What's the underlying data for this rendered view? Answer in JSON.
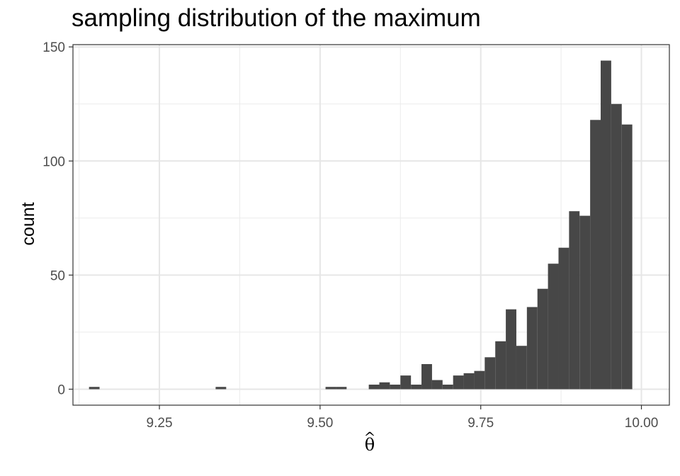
{
  "chart_data": {
    "type": "histogram",
    "title": "sampling distribution of the maximum",
    "xlabel": "θ",
    "xlabel_accent": "^",
    "ylabel": "count",
    "xlim": [
      9.1155,
      10.0435
    ],
    "ylim": [
      -7,
      151
    ],
    "bin_width": 0.0164,
    "x_ticks": [
      9.25,
      9.5,
      9.75,
      10.0
    ],
    "x_tick_labels": [
      "9.25",
      "9.50",
      "9.75",
      "10.00"
    ],
    "y_ticks": [
      0,
      50,
      100,
      150
    ],
    "y_tick_labels": [
      "0",
      "50",
      "100",
      "150"
    ],
    "grid": true,
    "bar_color": "#474747",
    "bins": [
      {
        "start": 9.1405,
        "count": 1
      },
      {
        "start": 9.3375,
        "count": 1
      },
      {
        "start": 9.5085,
        "count": 1
      },
      {
        "start": 9.5249,
        "count": 1
      },
      {
        "start": 9.5758,
        "count": 2
      },
      {
        "start": 9.5922,
        "count": 3
      },
      {
        "start": 9.6086,
        "count": 2
      },
      {
        "start": 9.625,
        "count": 6
      },
      {
        "start": 9.6414,
        "count": 2
      },
      {
        "start": 9.6578,
        "count": 11
      },
      {
        "start": 9.6742,
        "count": 4
      },
      {
        "start": 9.6906,
        "count": 2
      },
      {
        "start": 9.707,
        "count": 6
      },
      {
        "start": 9.7234,
        "count": 7
      },
      {
        "start": 9.7398,
        "count": 8
      },
      {
        "start": 9.7562,
        "count": 14
      },
      {
        "start": 9.7726,
        "count": 21
      },
      {
        "start": 9.789,
        "count": 35
      },
      {
        "start": 9.8054,
        "count": 19
      },
      {
        "start": 9.8218,
        "count": 36
      },
      {
        "start": 9.8382,
        "count": 44
      },
      {
        "start": 9.8546,
        "count": 55
      },
      {
        "start": 9.871,
        "count": 62
      },
      {
        "start": 9.8874,
        "count": 78
      },
      {
        "start": 9.9038,
        "count": 76
      },
      {
        "start": 9.9202,
        "count": 118
      },
      {
        "start": 9.9366,
        "count": 144
      },
      {
        "start": 9.953,
        "count": 125
      },
      {
        "start": 9.9694,
        "count": 116
      }
    ]
  }
}
